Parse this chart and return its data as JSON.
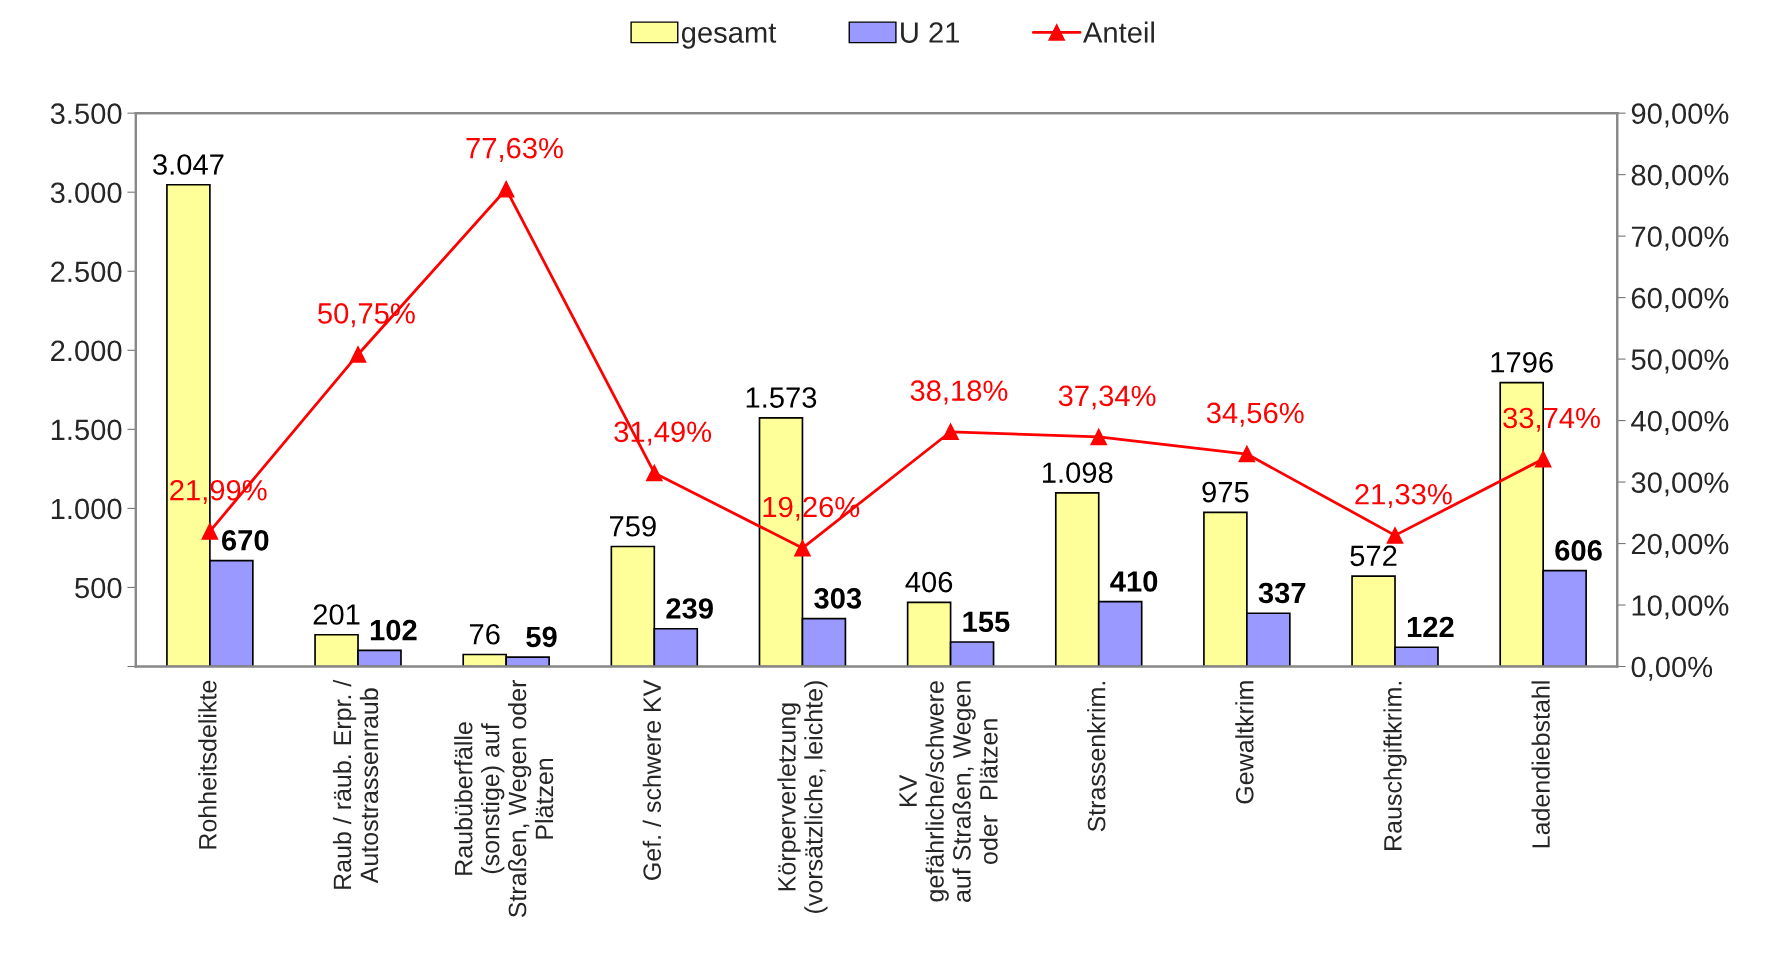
{
  "chart_data": {
    "type": "bar",
    "categories": [
      "Rohheitsdelikte",
      "Raub / räub. Erpr. /\nAutostrassenraub",
      "Raubüberfälle\n(sonstige) auf\nStraßen, Wegen oder\nPlätzen",
      "Gef. / schwere KV",
      "Körperverletzung\n(vorsätzliche, leichte)",
      "KV\ngefährliche/schwere\nauf Straßen, Wegen\noder  Plätzen",
      "Strassenkrim.",
      "Gewaltkrim",
      "Rauschgiftkrim.",
      "Ladendiebstahl"
    ],
    "series": [
      {
        "name": "gesamt",
        "color": "#ffff99",
        "values": [
          3047,
          201,
          76,
          759,
          1573,
          406,
          1098,
          975,
          572,
          1796
        ],
        "value_labels": [
          "3.047",
          "201",
          "76",
          "759",
          "1.573",
          "406",
          "1.098",
          "975",
          "572",
          "1796"
        ]
      },
      {
        "name": "U 21",
        "color": "#9999ff",
        "values": [
          670,
          102,
          59,
          239,
          303,
          155,
          410,
          337,
          122,
          606
        ],
        "value_labels": [
          "670",
          "102",
          "59",
          "239",
          "303",
          "155",
          "410",
          "337",
          "122",
          "606"
        ]
      },
      {
        "name": "Anteil",
        "type": "line",
        "axis": "y2",
        "color": "#ff0000",
        "marker": "triangle",
        "line_style": "solid",
        "values": [
          21.99,
          50.75,
          77.63,
          31.49,
          19.26,
          38.18,
          37.34,
          34.56,
          21.33,
          33.74
        ],
        "value_labels": [
          "21,99%",
          "50,75%",
          "77,63%",
          "31,49%",
          "19,26%",
          "38,18%",
          "37,34%",
          "34,56%",
          "21,33%",
          "33,74%"
        ]
      }
    ],
    "ylim": [
      0,
      3500
    ],
    "yticks": [
      {
        "value": 0,
        "label": null
      },
      {
        "value": 500,
        "label": "500"
      },
      {
        "value": 1000,
        "label": "1.000"
      },
      {
        "value": 1500,
        "label": "1.500"
      },
      {
        "value": 2000,
        "label": "2.000"
      },
      {
        "value": 2500,
        "label": "2.500"
      },
      {
        "value": 3000,
        "label": "3.000"
      },
      {
        "value": 3500,
        "label": "3.500"
      }
    ],
    "y2lim": [
      0,
      90
    ],
    "y2ticks": [
      {
        "value": 0,
        "label": "0,00%"
      },
      {
        "value": 10,
        "label": "10,00%"
      },
      {
        "value": 20,
        "label": "20,00%"
      },
      {
        "value": 30,
        "label": "30,00%"
      },
      {
        "value": 40,
        "label": "40,00%"
      },
      {
        "value": 50,
        "label": "50,00%"
      },
      {
        "value": 60,
        "label": "60,00%"
      },
      {
        "value": 70,
        "label": "70,00%"
      },
      {
        "value": 80,
        "label": "80,00%"
      },
      {
        "value": 90,
        "label": "90,00%"
      }
    ],
    "grid": false,
    "legend": "top"
  }
}
